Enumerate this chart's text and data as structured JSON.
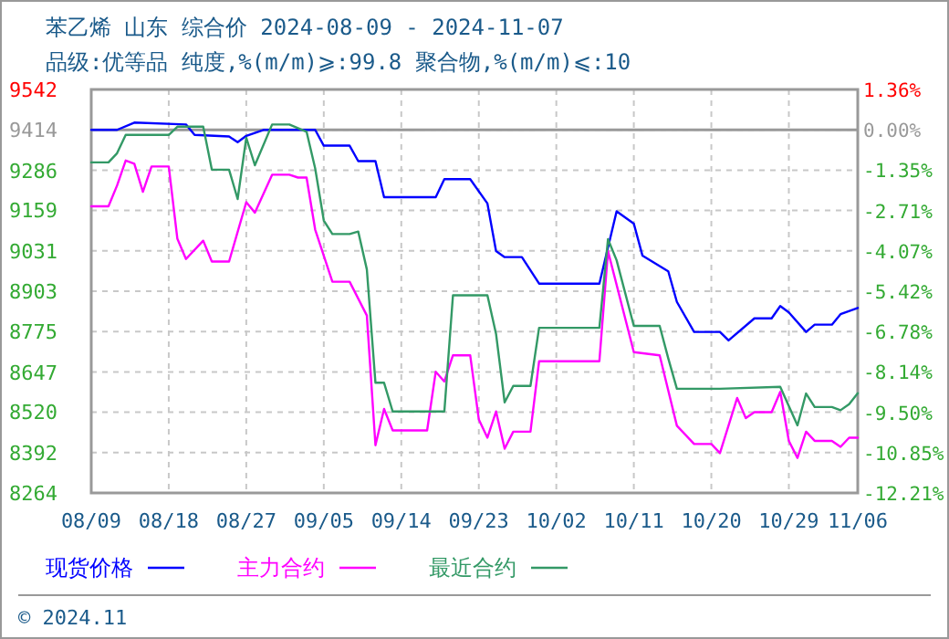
{
  "chart_data": {
    "type": "line",
    "title": "苯乙烯 山东 综合价 2024-08-09 - 2024-11-07",
    "subtitle": "品级:优等品 纯度,%(m/m)⩾:99.8 聚合物,%(m/m)⩽:10",
    "xlim": [
      "2024-08-09",
      "2024-11-06"
    ],
    "xticks": [
      {
        "value": "2024-08-09",
        "label": "08/09"
      },
      {
        "value": "2024-08-18",
        "label": "08/18"
      },
      {
        "value": "2024-08-27",
        "label": "08/27"
      },
      {
        "value": "2024-09-05",
        "label": "09/05"
      },
      {
        "value": "2024-09-14",
        "label": "09/14"
      },
      {
        "value": "2024-09-23",
        "label": "09/23"
      },
      {
        "value": "2024-10-02",
        "label": "10/02"
      },
      {
        "value": "2024-10-11",
        "label": "10/11"
      },
      {
        "value": "2024-10-20",
        "label": "10/20"
      },
      {
        "value": "2024-10-29",
        "label": "10/29"
      },
      {
        "value": "2024-11-06",
        "label": "11/06"
      }
    ],
    "ylim": [
      8264,
      9542
    ],
    "yticks": [
      9542,
      9414,
      9286,
      9159,
      9031,
      8903,
      8775,
      8647,
      8520,
      8392,
      8264
    ],
    "y2lim": [
      -12.21,
      1.36
    ],
    "y2ticks": [
      {
        "value": 1.36,
        "label": "1.36%"
      },
      {
        "value": 0,
        "label": "0.00%"
      },
      {
        "value": -1.35,
        "label": "-1.35%"
      },
      {
        "value": -2.71,
        "label": "-2.71%"
      },
      {
        "value": -4.07,
        "label": "-4.07%"
      },
      {
        "value": -5.42,
        "label": "-5.42%"
      },
      {
        "value": -6.78,
        "label": "-6.78%"
      },
      {
        "value": -8.14,
        "label": "-8.14%"
      },
      {
        "value": -9.5,
        "label": "-9.50%"
      },
      {
        "value": -10.85,
        "label": "-10.85%"
      },
      {
        "value": -12.21,
        "label": "-12.21%"
      }
    ],
    "grid": true,
    "legend": "bottom",
    "ref_lines": [
      {
        "axis": "y",
        "value": 9414,
        "color": "#999999"
      }
    ],
    "annotations": [
      "© 2024.11"
    ],
    "series": [
      {
        "name": "现货价格",
        "color": "#0000ff",
        "x": [
          "2024-08-09",
          "2024-08-12",
          "2024-08-14",
          "2024-08-20",
          "2024-08-21",
          "2024-08-25",
          "2024-08-26",
          "2024-08-27",
          "2024-08-29",
          "2024-09-04",
          "2024-09-05",
          "2024-09-08",
          "2024-09-09",
          "2024-09-11",
          "2024-09-12",
          "2024-09-18",
          "2024-09-19",
          "2024-09-22",
          "2024-09-24",
          "2024-09-25",
          "2024-09-26",
          "2024-09-28",
          "2024-09-30",
          "2024-10-07",
          "2024-10-09",
          "2024-10-11",
          "2024-10-12",
          "2024-10-15",
          "2024-10-16",
          "2024-10-18",
          "2024-10-21",
          "2024-10-22",
          "2024-10-25",
          "2024-10-27",
          "2024-10-28",
          "2024-10-29",
          "2024-10-31",
          "2024-11-01",
          "2024-11-03",
          "2024-11-04",
          "2024-11-06"
        ],
        "values": [
          9414,
          9414,
          9437,
          9431,
          9398,
          9393,
          9375,
          9395,
          9414,
          9414,
          9364,
          9364,
          9315,
          9315,
          9201,
          9201,
          9258,
          9258,
          9181,
          9030,
          9011,
          9011,
          8927,
          8927,
          9156,
          9117,
          9016,
          8966,
          8869,
          8774,
          8774,
          8747,
          8817,
          8817,
          8856,
          8836,
          8774,
          8797,
          8797,
          8830,
          8850
        ]
      },
      {
        "name": "主力合约",
        "color": "#ff00ff",
        "x": [
          "2024-08-09",
          "2024-08-11",
          "2024-08-12",
          "2024-08-13",
          "2024-08-14",
          "2024-08-15",
          "2024-08-16",
          "2024-08-18",
          "2024-08-19",
          "2024-08-20",
          "2024-08-22",
          "2024-08-23",
          "2024-08-25",
          "2024-08-27",
          "2024-08-28",
          "2024-08-30",
          "2024-09-01",
          "2024-09-02",
          "2024-09-03",
          "2024-09-04",
          "2024-09-06",
          "2024-09-08",
          "2024-09-10",
          "2024-09-11",
          "2024-09-12",
          "2024-09-13",
          "2024-09-17",
          "2024-09-18",
          "2024-09-19",
          "2024-09-20",
          "2024-09-22",
          "2024-09-23",
          "2024-09-24",
          "2024-09-25",
          "2024-09-26",
          "2024-09-27",
          "2024-09-29",
          "2024-09-30",
          "2024-10-07",
          "2024-10-08",
          "2024-10-11",
          "2024-10-14",
          "2024-10-16",
          "2024-10-18",
          "2024-10-20",
          "2024-10-21",
          "2024-10-23",
          "2024-10-24",
          "2024-10-25",
          "2024-10-27",
          "2024-10-28",
          "2024-10-29",
          "2024-10-30",
          "2024-10-31",
          "2024-11-01",
          "2024-11-03",
          "2024-11-04",
          "2024-11-05",
          "2024-11-06"
        ],
        "values": [
          9172,
          9172,
          9238,
          9317,
          9307,
          9218,
          9298,
          9298,
          9069,
          9005,
          9063,
          8997,
          8997,
          9185,
          9152,
          9272,
          9272,
          9263,
          9263,
          9098,
          8933,
          8933,
          8826,
          8415,
          8530,
          8462,
          8462,
          8648,
          8617,
          8700,
          8700,
          8497,
          8439,
          8522,
          8404,
          8458,
          8458,
          8681,
          8681,
          9030,
          8710,
          8700,
          8477,
          8419,
          8419,
          8390,
          8565,
          8501,
          8520,
          8520,
          8584,
          8429,
          8375,
          8458,
          8429,
          8429,
          8410,
          8439,
          8439
        ]
      },
      {
        "name": "最近合约",
        "color": "#339966",
        "x": [
          "2024-08-09",
          "2024-08-11",
          "2024-08-12",
          "2024-08-13",
          "2024-08-18",
          "2024-08-19",
          "2024-08-22",
          "2024-08-23",
          "2024-08-25",
          "2024-08-26",
          "2024-08-27",
          "2024-08-28",
          "2024-08-30",
          "2024-09-01",
          "2024-09-03",
          "2024-09-04",
          "2024-09-05",
          "2024-09-06",
          "2024-09-08",
          "2024-09-09",
          "2024-09-10",
          "2024-09-11",
          "2024-09-12",
          "2024-09-13",
          "2024-09-19",
          "2024-09-20",
          "2024-09-24",
          "2024-09-25",
          "2024-09-26",
          "2024-09-27",
          "2024-09-29",
          "2024-09-30",
          "2024-10-07",
          "2024-10-08",
          "2024-10-09",
          "2024-10-11",
          "2024-10-14",
          "2024-10-15",
          "2024-10-16",
          "2024-10-21",
          "2024-10-28",
          "2024-10-30",
          "2024-10-31",
          "2024-11-01",
          "2024-11-03",
          "2024-11-04",
          "2024-11-05",
          "2024-11-06"
        ],
        "values": [
          9311,
          9311,
          9340,
          9398,
          9398,
          9424,
          9424,
          9288,
          9288,
          9195,
          9389,
          9302,
          9431,
          9431,
          9408,
          9292,
          9127,
          9084,
          9084,
          9092,
          8972,
          8613,
          8613,
          8522,
          8522,
          8890,
          8890,
          8768,
          8551,
          8603,
          8603,
          8787,
          8787,
          9068,
          9001,
          8793,
          8793,
          8690,
          8594,
          8594,
          8600,
          8478,
          8579,
          8536,
          8536,
          8526,
          8545,
          8580
        ]
      }
    ]
  }
}
